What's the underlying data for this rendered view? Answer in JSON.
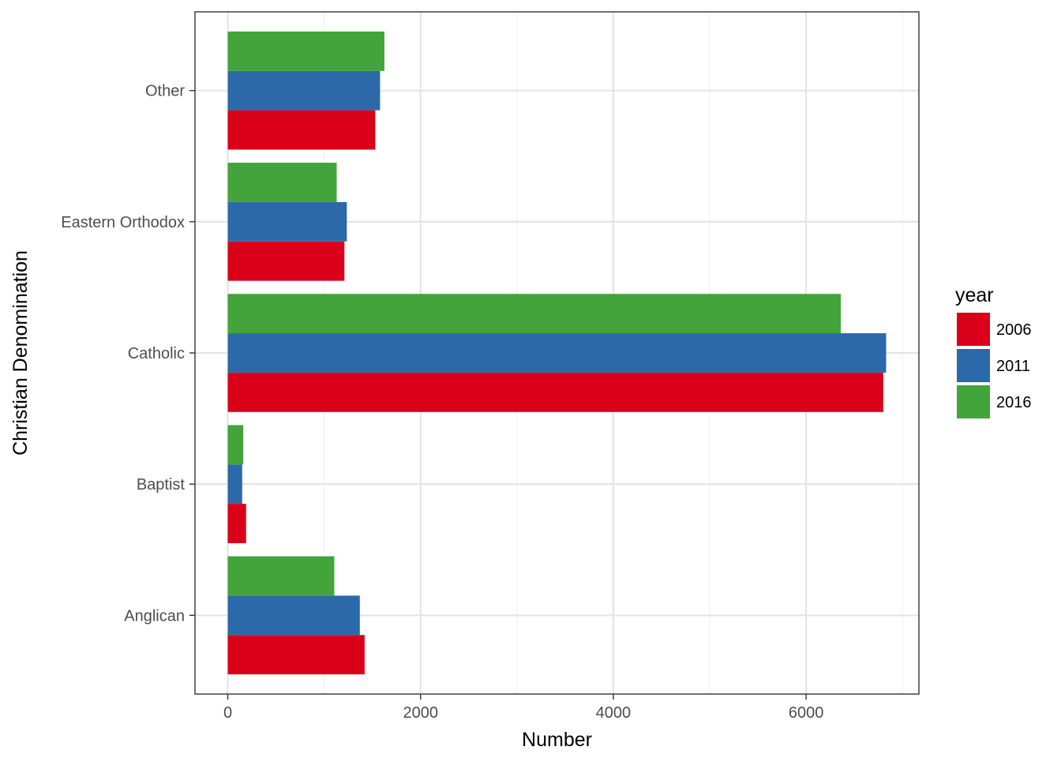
{
  "chart_data": {
    "type": "bar",
    "orientation": "horizontal",
    "position": "dodge",
    "categories": [
      "Anglican",
      "Baptist",
      "Catholic",
      "Eastern Orthodox",
      "Other"
    ],
    "series": [
      {
        "name": "2006",
        "color": "#db0019",
        "values": [
          1420,
          190,
          6800,
          1210,
          1530
        ]
      },
      {
        "name": "2011",
        "color": "#2c69a8",
        "values": [
          1370,
          150,
          6830,
          1235,
          1580
        ]
      },
      {
        "name": "2016",
        "color": "#42a43a",
        "values": [
          1105,
          160,
          6360,
          1130,
          1625
        ]
      }
    ],
    "xlabel": "Number",
    "ylabel": "Christian Denomination",
    "x_ticks": [
      "0",
      "2000",
      "4000",
      "6000"
    ],
    "xlim": [
      -340,
      7170
    ],
    "grid": true,
    "legend": {
      "title": "year",
      "placement": "right"
    },
    "theme": "bw"
  }
}
